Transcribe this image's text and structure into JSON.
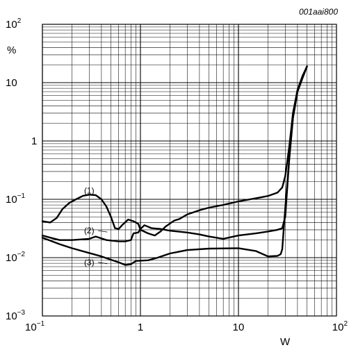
{
  "chart_data": {
    "type": "line",
    "reference_code": "001aai800",
    "xlabel": "W",
    "ylabel": "%",
    "x_scale": "log",
    "y_scale": "log",
    "xlim": [
      0.1,
      100
    ],
    "ylim": [
      0.001,
      100
    ],
    "x_ticks": [
      {
        "value": 0.1,
        "base": "10",
        "exp": "−1"
      },
      {
        "value": 1,
        "base": "1",
        "exp": ""
      },
      {
        "value": 10,
        "base": "10",
        "exp": ""
      },
      {
        "value": 100,
        "base": "10",
        "exp": "2"
      }
    ],
    "y_ticks": [
      {
        "value": 0.001,
        "base": "10",
        "exp": "−3"
      },
      {
        "value": 0.01,
        "base": "10",
        "exp": "−2"
      },
      {
        "value": 0.1,
        "base": "10",
        "exp": "−1"
      },
      {
        "value": 1,
        "base": "1",
        "exp": ""
      },
      {
        "value": 10,
        "base": "10",
        "exp": ""
      },
      {
        "value": 100,
        "base": "10",
        "exp": "2"
      }
    ],
    "grid": true,
    "series": [
      {
        "name": "(1)",
        "label_at": [
          0.3,
          0.14
        ],
        "points": [
          [
            0.1,
            0.042
          ],
          [
            0.12,
            0.04
          ],
          [
            0.14,
            0.048
          ],
          [
            0.16,
            0.068
          ],
          [
            0.19,
            0.088
          ],
          [
            0.22,
            0.1
          ],
          [
            0.26,
            0.115
          ],
          [
            0.3,
            0.12
          ],
          [
            0.35,
            0.118
          ],
          [
            0.4,
            0.1
          ],
          [
            0.45,
            0.075
          ],
          [
            0.5,
            0.05
          ],
          [
            0.55,
            0.032
          ],
          [
            0.6,
            0.031
          ],
          [
            0.65,
            0.036
          ],
          [
            0.75,
            0.045
          ],
          [
            0.85,
            0.042
          ],
          [
            0.95,
            0.038
          ],
          [
            1.0,
            0.03
          ],
          [
            1.2,
            0.026
          ],
          [
            1.4,
            0.024
          ],
          [
            1.6,
            0.028
          ],
          [
            1.8,
            0.034
          ],
          [
            2.2,
            0.043
          ],
          [
            2.5,
            0.046
          ],
          [
            3.0,
            0.055
          ],
          [
            4.0,
            0.065
          ],
          [
            5.0,
            0.072
          ],
          [
            7.0,
            0.08
          ],
          [
            10,
            0.092
          ],
          [
            15,
            0.104
          ],
          [
            20,
            0.114
          ],
          [
            25,
            0.13
          ],
          [
            28,
            0.16
          ],
          [
            30,
            0.25
          ],
          [
            33,
            0.8
          ],
          [
            36,
            3.0
          ],
          [
            40,
            7.5
          ],
          [
            45,
            13
          ],
          [
            50,
            19
          ]
        ]
      },
      {
        "name": "(2)",
        "label_at": [
          0.3,
          0.029
        ],
        "points": [
          [
            0.1,
            0.024
          ],
          [
            0.12,
            0.022
          ],
          [
            0.15,
            0.02
          ],
          [
            0.2,
            0.02
          ],
          [
            0.3,
            0.021
          ],
          [
            0.35,
            0.023
          ],
          [
            0.45,
            0.02
          ],
          [
            0.6,
            0.019
          ],
          [
            0.7,
            0.019
          ],
          [
            0.8,
            0.02
          ],
          [
            0.85,
            0.026
          ],
          [
            0.95,
            0.027
          ],
          [
            1.0,
            0.031
          ],
          [
            1.1,
            0.036
          ],
          [
            1.3,
            0.032
          ],
          [
            1.6,
            0.031
          ],
          [
            2.0,
            0.029
          ],
          [
            3.0,
            0.027
          ],
          [
            4.0,
            0.025
          ],
          [
            5.0,
            0.023
          ],
          [
            7.0,
            0.021
          ],
          [
            10,
            0.024
          ],
          [
            15,
            0.026
          ],
          [
            20,
            0.028
          ],
          [
            25,
            0.03
          ],
          [
            28,
            0.032
          ],
          [
            30,
            0.05
          ],
          [
            33,
            0.5
          ],
          [
            36,
            2.5
          ],
          [
            40,
            7
          ],
          [
            45,
            12
          ],
          [
            50,
            19
          ]
        ]
      },
      {
        "name": "(3)",
        "label_at": [
          0.3,
          0.0083
        ],
        "points": [
          [
            0.1,
            0.022
          ],
          [
            0.15,
            0.017
          ],
          [
            0.2,
            0.0145
          ],
          [
            0.3,
            0.012
          ],
          [
            0.4,
            0.0105
          ],
          [
            0.5,
            0.0092
          ],
          [
            0.6,
            0.0083
          ],
          [
            0.7,
            0.0075
          ],
          [
            0.8,
            0.0077
          ],
          [
            0.9,
            0.0088
          ],
          [
            1.2,
            0.009
          ],
          [
            1.5,
            0.01
          ],
          [
            2.0,
            0.0118
          ],
          [
            3.0,
            0.0135
          ],
          [
            5.0,
            0.0143
          ],
          [
            10,
            0.0145
          ],
          [
            15,
            0.013
          ],
          [
            20,
            0.0105
          ],
          [
            25,
            0.0107
          ],
          [
            27,
            0.0115
          ],
          [
            28,
            0.014
          ],
          [
            30,
            0.07
          ],
          [
            33,
            0.5
          ],
          [
            36,
            2.5
          ],
          [
            40,
            7
          ],
          [
            45,
            12
          ],
          [
            50,
            19
          ]
        ]
      }
    ]
  }
}
